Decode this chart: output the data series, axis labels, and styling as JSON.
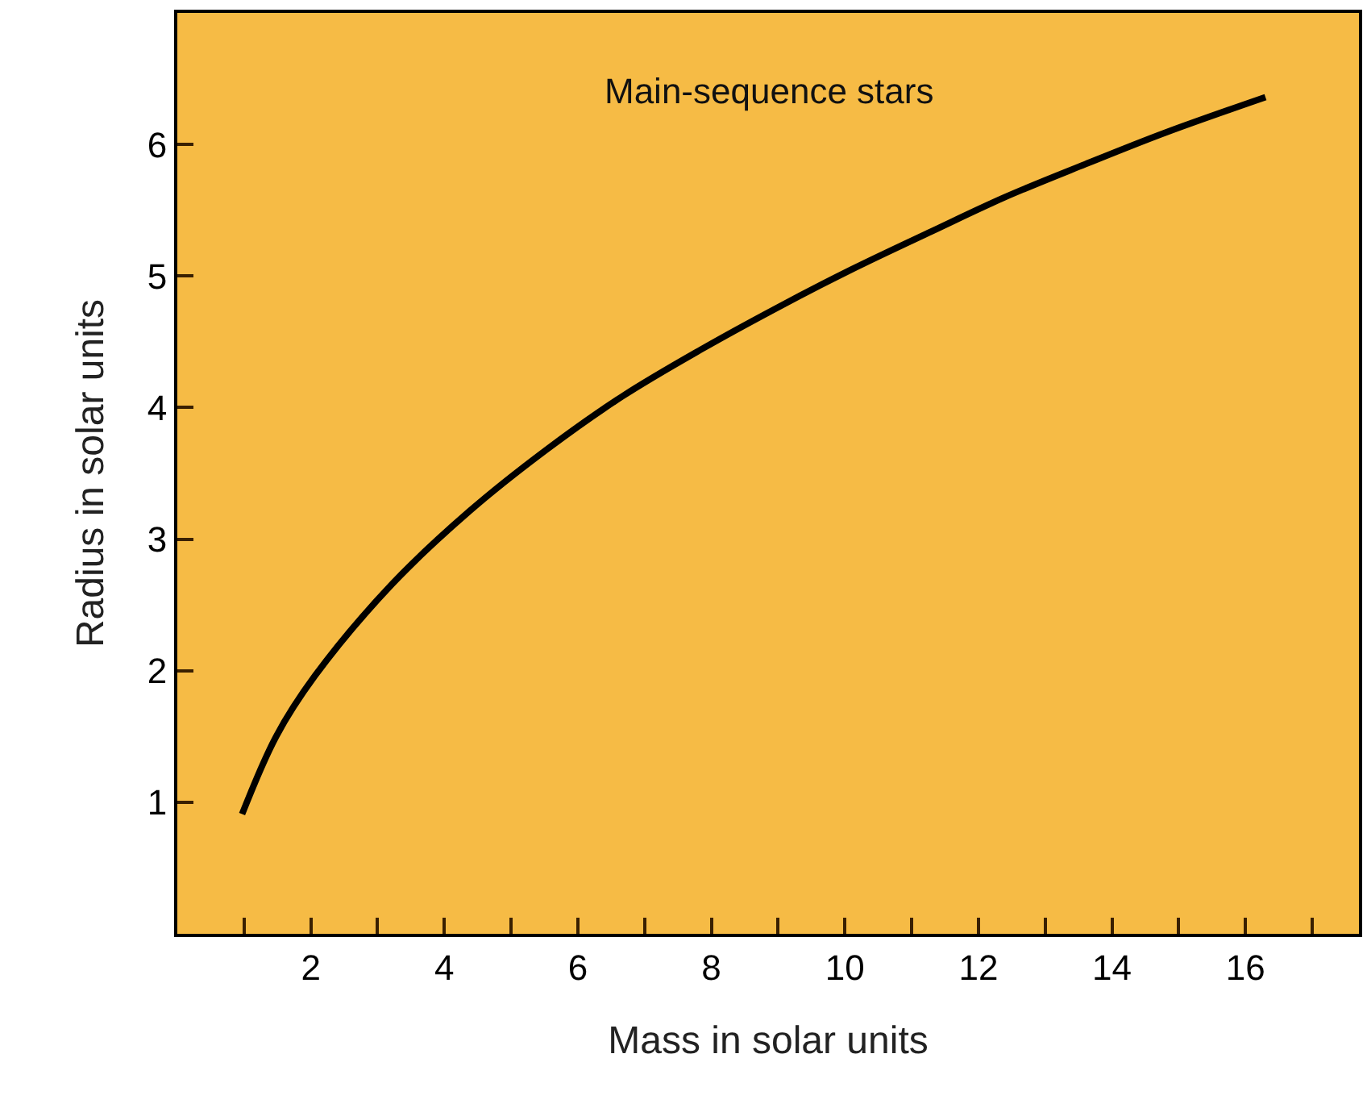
{
  "chart_data": {
    "type": "line",
    "xlabel": "Mass in solar units",
    "ylabel": "Radius in solar units",
    "x": [
      0.97,
      1.48,
      2.06,
      3.22,
      4.37,
      5.53,
      6.68,
      7.84,
      8.99,
      10.1,
      11.3,
      12.4,
      13.6,
      14.8,
      16.3
    ],
    "series": [
      {
        "color": "#000000",
        "values": [
          0.91,
          1.5,
          1.96,
          2.66,
          3.21,
          3.68,
          4.09,
          4.44,
          4.76,
          5.05,
          5.34,
          5.6,
          5.85,
          6.09,
          6.36
        ]
      }
    ],
    "annotations": [
      "Main-sequence stars"
    ],
    "xlim": [
      0,
      17.7
    ],
    "ylim": [
      0,
      7
    ],
    "xticks": [
      {
        "value": 1,
        "label": null
      },
      2,
      {
        "value": 3,
        "label": null
      },
      4,
      {
        "value": 5,
        "label": null
      },
      6,
      {
        "value": 7,
        "label": null
      },
      8,
      {
        "value": 9,
        "label": null
      },
      10,
      {
        "value": 11,
        "label": null
      },
      12,
      {
        "value": 13,
        "label": null
      },
      14,
      {
        "value": 15,
        "label": null
      },
      16,
      {
        "value": 17,
        "label": null
      }
    ],
    "yticks": [
      1,
      2,
      3,
      4,
      5,
      6
    ],
    "grid": false,
    "marker": "none",
    "line_style": "solid"
  }
}
